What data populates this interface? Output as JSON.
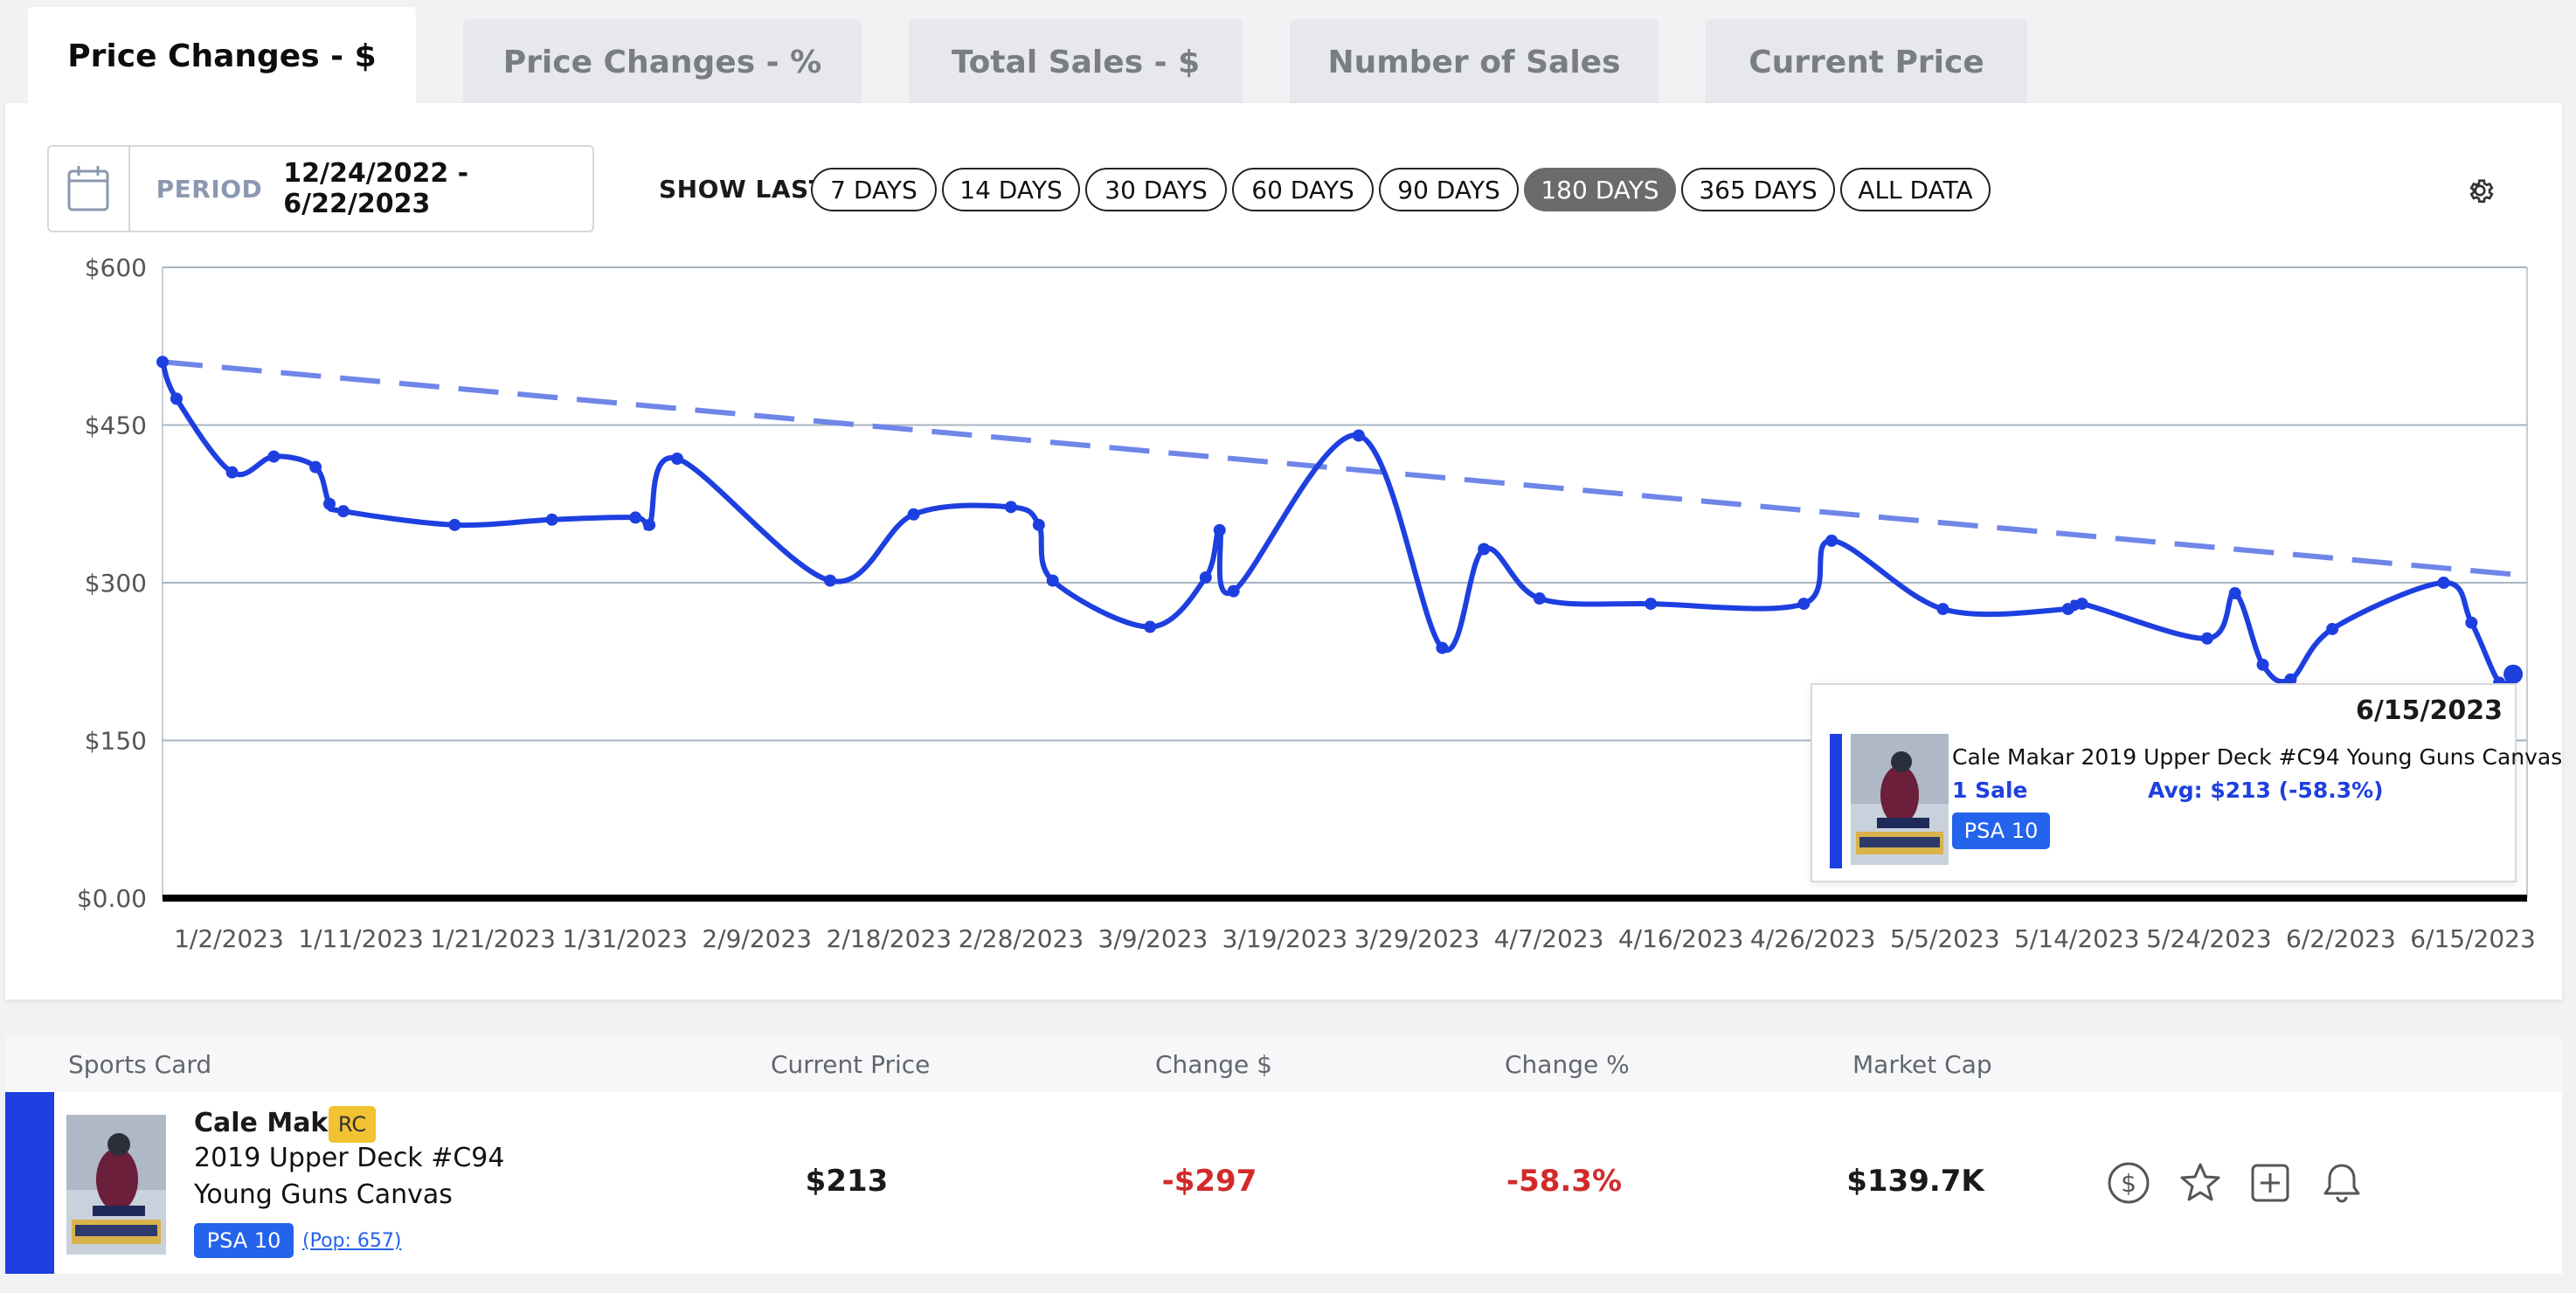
{
  "tabs": [
    {
      "label": "Price Changes - $",
      "active": true
    },
    {
      "label": "Price Changes - %",
      "active": false
    },
    {
      "label": "Total Sales - $",
      "active": false
    },
    {
      "label": "Number of Sales",
      "active": false
    },
    {
      "label": "Current Price",
      "active": false
    }
  ],
  "period": {
    "label": "PERIOD",
    "range": "12/24/2022 - 6/22/2023"
  },
  "show_last": {
    "label": "SHOW LAST",
    "options": [
      "7 DAYS",
      "14 DAYS",
      "30 DAYS",
      "60 DAYS",
      "90 DAYS",
      "180 DAYS",
      "365 DAYS",
      "ALL DATA"
    ],
    "selected": "180 DAYS"
  },
  "colors": {
    "line": "#1e3fe0",
    "trend": "#6f86e8",
    "accent": "#2463eb",
    "negative": "#d22a2a",
    "rc": "#f1c232"
  },
  "chart_data": {
    "type": "line",
    "ylim": [
      0,
      600
    ],
    "yticks": [
      "$600",
      "$450",
      "$300",
      "$150",
      "$0.00"
    ],
    "ytick_values": [
      600,
      450,
      300,
      150,
      0
    ],
    "xticks": [
      "1/2/2023",
      "1/11/2023",
      "1/21/2023",
      "1/31/2023",
      "2/9/2023",
      "2/18/2023",
      "2/28/2023",
      "3/9/2023",
      "3/19/2023",
      "3/29/2023",
      "4/7/2023",
      "4/16/2023",
      "4/26/2023",
      "5/5/2023",
      "5/14/2023",
      "5/24/2023",
      "6/2/2023",
      "6/15/2023"
    ],
    "xrange": [
      "2022-12-28",
      "2023-06-16"
    ],
    "grid": true,
    "series": [
      {
        "values": [
          [
            "2022-12-28",
            510
          ],
          [
            "2022-12-29",
            475
          ],
          [
            "2023-01-02",
            405
          ],
          [
            "2023-01-05",
            420
          ],
          [
            "2023-01-08",
            410
          ],
          [
            "2023-01-09",
            375
          ],
          [
            "2023-01-10",
            368
          ],
          [
            "2023-01-18",
            355
          ],
          [
            "2023-01-25",
            360
          ],
          [
            "2023-01-31",
            362
          ],
          [
            "2023-02-01",
            355
          ],
          [
            "2023-02-03",
            418
          ],
          [
            "2023-02-14",
            302
          ],
          [
            "2023-02-20",
            365
          ],
          [
            "2023-02-27",
            372
          ],
          [
            "2023-03-01",
            355
          ],
          [
            "2023-03-02",
            302
          ],
          [
            "2023-03-09",
            258
          ],
          [
            "2023-03-13",
            305
          ],
          [
            "2023-03-14",
            350
          ],
          [
            "2023-03-15",
            292
          ],
          [
            "2023-03-24",
            440
          ],
          [
            "2023-03-30",
            238
          ],
          [
            "2023-04-02",
            332
          ],
          [
            "2023-04-06",
            285
          ],
          [
            "2023-04-14",
            280
          ],
          [
            "2023-04-25",
            280
          ],
          [
            "2023-04-27",
            340
          ],
          [
            "2023-05-05",
            275
          ],
          [
            "2023-05-14",
            275
          ],
          [
            "2023-05-15",
            280
          ],
          [
            "2023-05-24",
            247
          ],
          [
            "2023-05-26",
            290
          ],
          [
            "2023-05-28",
            222
          ],
          [
            "2023-05-30",
            208
          ],
          [
            "2023-06-02",
            256
          ],
          [
            "2023-06-10",
            300
          ],
          [
            "2023-06-12",
            262
          ],
          [
            "2023-06-14",
            205
          ],
          [
            "2023-06-15",
            213
          ]
        ]
      }
    ],
    "trendline": {
      "start": [
        "2022-12-28",
        510
      ],
      "end": [
        "2023-06-15",
        308
      ]
    },
    "tooltip": {
      "date": "6/15/2023",
      "title": "Cale Makar 2019 Upper Deck #C94 Young Guns Canvas",
      "sales": "1 Sale",
      "avg": "Avg: $213 (-58.3%)",
      "grade": "PSA 10"
    }
  },
  "table": {
    "headers": {
      "card": "Sports Card",
      "price": "Current Price",
      "change_usd": "Change $",
      "change_pct": "Change %",
      "market_cap": "Market Cap"
    },
    "row": {
      "player": "Cale Makar",
      "rc": "RC",
      "line1": "2019 Upper Deck #C94",
      "line2": "Young Guns Canvas",
      "grade": "PSA 10",
      "pop": "(Pop: 657)",
      "current_price": "$213",
      "change_usd": "-$297",
      "change_pct": "-58.3%",
      "market_cap": "$139.7K"
    },
    "actions": [
      "dollar-icon",
      "star-icon",
      "add-icon",
      "bell-icon"
    ]
  }
}
